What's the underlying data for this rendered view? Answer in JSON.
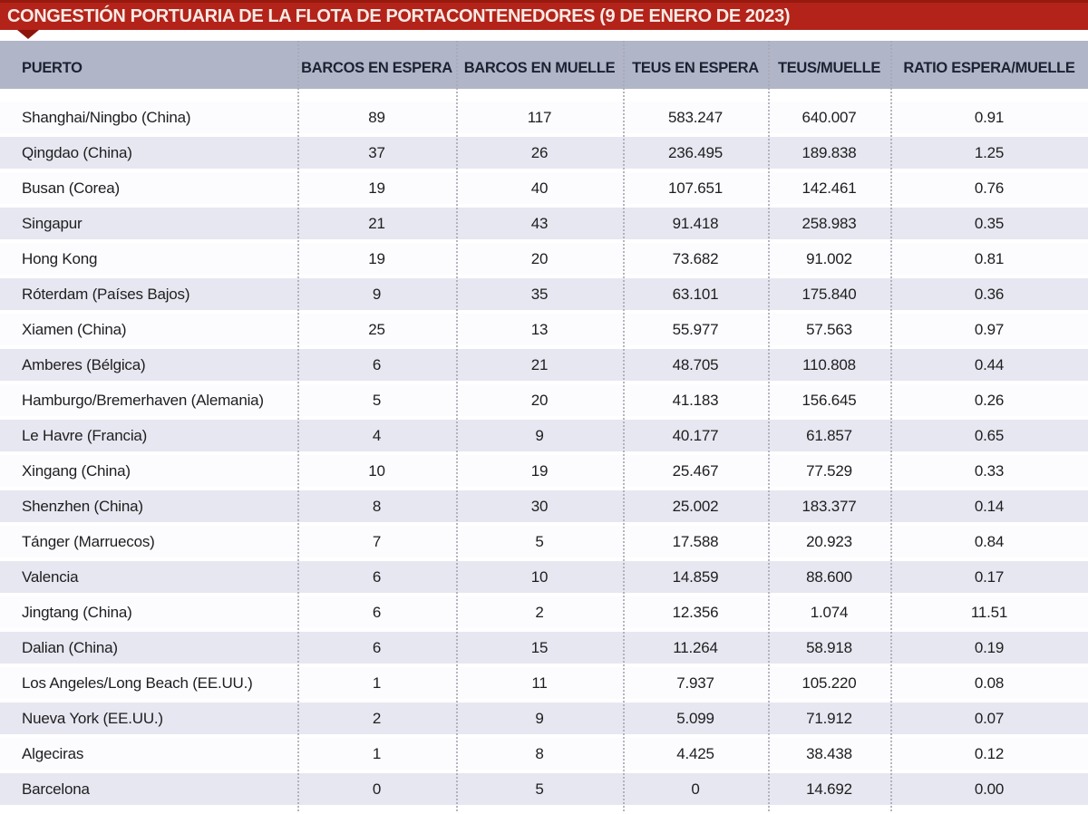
{
  "chart_data": {
    "type": "table",
    "title": "CONGESTIÓN PORTUARIA DE LA FLOTA DE PORTACONTENEDORES (9 DE ENERO DE 2023)",
    "columns": [
      "PUERTO",
      "BARCOS EN ESPERA",
      "BARCOS EN MUELLE",
      "TEUS EN ESPERA",
      "TEUS/MUELLE",
      "RATIO ESPERA/MUELLE"
    ],
    "rows": [
      [
        "Shanghai/Ningbo (China)",
        "89",
        "117",
        "583.247",
        "640.007",
        "0.91"
      ],
      [
        "Qingdao (China)",
        "37",
        "26",
        "236.495",
        "189.838",
        "1.25"
      ],
      [
        "Busan (Corea)",
        "19",
        "40",
        "107.651",
        "142.461",
        "0.76"
      ],
      [
        "Singapur",
        "21",
        "43",
        "91.418",
        "258.983",
        "0.35"
      ],
      [
        "Hong Kong",
        "19",
        "20",
        "73.682",
        "91.002",
        "0.81"
      ],
      [
        "Róterdam (Países Bajos)",
        "9",
        "35",
        "63.101",
        "175.840",
        "0.36"
      ],
      [
        "Xiamen (China)",
        "25",
        "13",
        "55.977",
        "57.563",
        "0.97"
      ],
      [
        "Amberes (Bélgica)",
        "6",
        "21",
        "48.705",
        "110.808",
        "0.44"
      ],
      [
        "Hamburgo/Bremerhaven (Alemania)",
        "5",
        "20",
        "41.183",
        "156.645",
        "0.26"
      ],
      [
        "Le Havre (Francia)",
        "4",
        "9",
        "40.177",
        "61.857",
        "0.65"
      ],
      [
        "Xingang (China)",
        "10",
        "19",
        "25.467",
        "77.529",
        "0.33"
      ],
      [
        "Shenzhen (China)",
        "8",
        "30",
        "25.002",
        "183.377",
        "0.14"
      ],
      [
        "Tánger (Marruecos)",
        "7",
        "5",
        "17.588",
        "20.923",
        "0.84"
      ],
      [
        "Valencia",
        "6",
        "10",
        "14.859",
        "88.600",
        "0.17"
      ],
      [
        "Jingtang (China)",
        "6",
        "2",
        "12.356",
        "1.074",
        "11.51"
      ],
      [
        "Dalian (China)",
        "6",
        "15",
        "11.264",
        "58.918",
        "0.19"
      ],
      [
        "Los Angeles/Long Beach (EE.UU.)",
        "1",
        "11",
        "7.937",
        "105.220",
        "0.08"
      ],
      [
        "Nueva York (EE.UU.)",
        "2",
        "9",
        "5.099",
        "71.912",
        "0.07"
      ],
      [
        "Algeciras",
        "1",
        "8",
        "4.425",
        "38.438",
        "0.12"
      ],
      [
        "Barcelona",
        "0",
        "5",
        "0",
        "14.692",
        "0.00"
      ]
    ],
    "layout": {
      "grid": "dotted-column-separators",
      "row_striping": "alternating"
    }
  },
  "colors": {
    "title_bg": "#b3231a",
    "title_bg_dark_edge": "#97190e",
    "title_text": "#f7eae4",
    "notch": "#8d160c",
    "header_bg": "#b1b5c8",
    "header_text": "#1d2232",
    "row_alt_bg": "#e7e7f1",
    "body_text": "#1e1e20",
    "separator": "#a9a9b6"
  }
}
